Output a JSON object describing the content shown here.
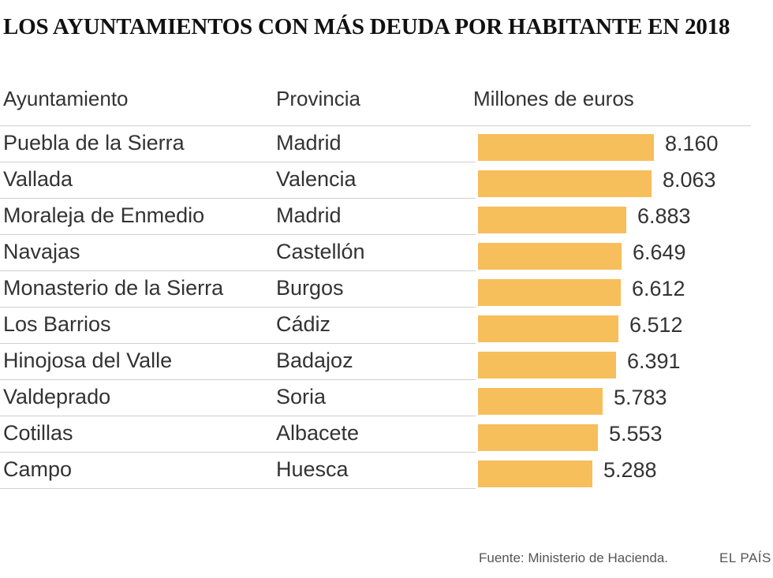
{
  "colors": {
    "bar": "#f7be5c"
  },
  "chart_data": {
    "type": "table",
    "title": "LOS AYUNTAMIENTOS CON MÁS DEUDA POR HABITANTE EN 2018",
    "columns": [
      "Ayuntamiento",
      "Provincia",
      "Millones de euros"
    ],
    "rows": [
      {
        "municipio": "Puebla de la Sierra",
        "provincia": "Madrid",
        "valor": 8160,
        "label": "8.160"
      },
      {
        "municipio": "Vallada",
        "provincia": "Valencia",
        "valor": 8063,
        "label": "8.063"
      },
      {
        "municipio": "Moraleja de Enmedio",
        "provincia": "Madrid",
        "valor": 6883,
        "label": "6.883"
      },
      {
        "municipio": "Navajas",
        "provincia": "Castellón",
        "valor": 6649,
        "label": "6.649"
      },
      {
        "municipio": "Monasterio de la Sierra",
        "provincia": "Burgos",
        "valor": 6612,
        "label": "6.612"
      },
      {
        "municipio": "Los Barrios",
        "provincia": "Cádiz",
        "valor": 6512,
        "label": "6.512"
      },
      {
        "municipio": "Hinojosa del Valle",
        "provincia": "Badajoz",
        "valor": 6391,
        "label": "6.391"
      },
      {
        "municipio": "Valdeprado",
        "provincia": "Soria",
        "valor": 5783,
        "label": "5.783"
      },
      {
        "municipio": "Cotillas",
        "provincia": "Albacete",
        "valor": 5553,
        "label": "5.553"
      },
      {
        "municipio": "Campo",
        "provincia": "Huesca",
        "valor": 5288,
        "label": "5.288"
      }
    ],
    "max": 8160
  },
  "footer": {
    "source": "Fuente: Ministerio de Hacienda.",
    "brand": "EL PAÍS"
  }
}
